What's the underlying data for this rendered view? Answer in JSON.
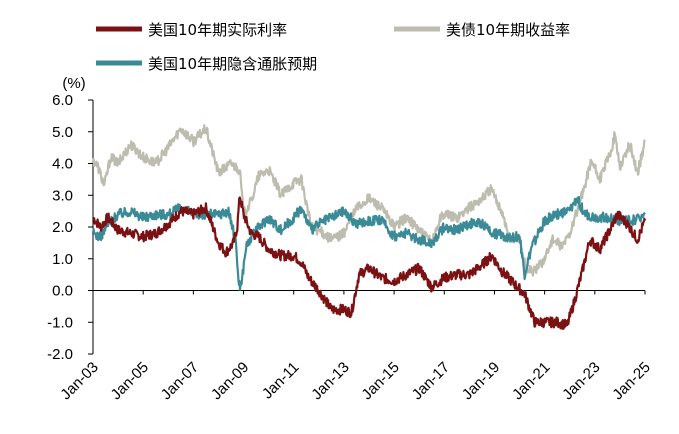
{
  "chart_data": {
    "type": "line",
    "title": "",
    "xlabel": "",
    "ylabel": "(%)",
    "ylim": [
      -2.0,
      6.0
    ],
    "yticks": [
      "6.0",
      "5.0",
      "4.0",
      "3.0",
      "2.0",
      "1.0",
      "0.0",
      "-1.0",
      "-2.0"
    ],
    "xticks": [
      "Jan-03",
      "Jan-05",
      "Jan-07",
      "Jan-09",
      "Jan-11",
      "Jan-13",
      "Jan-15",
      "Jan-17",
      "Jan-19",
      "Jan-21",
      "Jan-23",
      "Jan-25"
    ],
    "xrange": [
      2003.0,
      2025.0
    ],
    "legend_position": "top-left",
    "series": [
      {
        "name": "美国10年期实际利率",
        "color": "#7B1113",
        "points": [
          [
            2003.0,
            2.3
          ],
          [
            2003.3,
            2.0
          ],
          [
            2003.6,
            2.3
          ],
          [
            2004.0,
            1.9
          ],
          [
            2004.5,
            1.8
          ],
          [
            2005.0,
            1.7
          ],
          [
            2005.5,
            1.8
          ],
          [
            2006.0,
            2.1
          ],
          [
            2006.5,
            2.5
          ],
          [
            2007.0,
            2.4
          ],
          [
            2007.5,
            2.6
          ],
          [
            2008.0,
            1.5
          ],
          [
            2008.3,
            1.2
          ],
          [
            2008.6,
            1.5
          ],
          [
            2008.75,
            2.0
          ],
          [
            2008.85,
            3.0
          ],
          [
            2009.0,
            2.4
          ],
          [
            2009.3,
            1.8
          ],
          [
            2009.6,
            1.7
          ],
          [
            2010.0,
            1.3
          ],
          [
            2010.5,
            1.1
          ],
          [
            2011.0,
            1.1
          ],
          [
            2011.3,
            0.9
          ],
          [
            2011.6,
            0.4
          ],
          [
            2012.0,
            0.0
          ],
          [
            2012.5,
            -0.6
          ],
          [
            2013.0,
            -0.6
          ],
          [
            2013.3,
            -0.7
          ],
          [
            2013.6,
            0.5
          ],
          [
            2014.0,
            0.7
          ],
          [
            2014.5,
            0.4
          ],
          [
            2015.0,
            0.3
          ],
          [
            2015.5,
            0.5
          ],
          [
            2016.0,
            0.7
          ],
          [
            2016.5,
            0.1
          ],
          [
            2017.0,
            0.4
          ],
          [
            2017.5,
            0.5
          ],
          [
            2018.0,
            0.5
          ],
          [
            2018.5,
            0.8
          ],
          [
            2018.9,
            1.1
          ],
          [
            2019.3,
            0.6
          ],
          [
            2019.8,
            0.2
          ],
          [
            2020.2,
            -0.1
          ],
          [
            2020.6,
            -1.0
          ],
          [
            2021.0,
            -1.0
          ],
          [
            2021.5,
            -1.0
          ],
          [
            2021.9,
            -1.1
          ],
          [
            2022.2,
            -0.3
          ],
          [
            2022.5,
            0.6
          ],
          [
            2022.8,
            1.6
          ],
          [
            2023.2,
            1.3
          ],
          [
            2023.6,
            1.9
          ],
          [
            2023.9,
            2.4
          ],
          [
            2024.3,
            2.1
          ],
          [
            2024.7,
            1.6
          ],
          [
            2025.0,
            2.2
          ]
        ]
      },
      {
        "name": "美债10年期收益率",
        "color": "#BDBDAF",
        "points": [
          [
            2003.0,
            4.1
          ],
          [
            2003.2,
            3.9
          ],
          [
            2003.45,
            3.3
          ],
          [
            2003.7,
            4.2
          ],
          [
            2004.0,
            4.0
          ],
          [
            2004.5,
            4.6
          ],
          [
            2005.0,
            4.2
          ],
          [
            2005.5,
            4.0
          ],
          [
            2006.0,
            4.5
          ],
          [
            2006.5,
            5.1
          ],
          [
            2007.0,
            4.7
          ],
          [
            2007.5,
            5.1
          ],
          [
            2008.0,
            3.7
          ],
          [
            2008.5,
            4.0
          ],
          [
            2008.85,
            3.8
          ],
          [
            2009.0,
            2.4
          ],
          [
            2009.3,
            2.8
          ],
          [
            2009.6,
            3.6
          ],
          [
            2010.0,
            3.8
          ],
          [
            2010.5,
            3.0
          ],
          [
            2011.0,
            3.4
          ],
          [
            2011.3,
            3.5
          ],
          [
            2011.7,
            2.0
          ],
          [
            2012.0,
            1.9
          ],
          [
            2012.5,
            1.6
          ],
          [
            2013.0,
            1.8
          ],
          [
            2013.5,
            2.6
          ],
          [
            2014.0,
            2.9
          ],
          [
            2014.5,
            2.6
          ],
          [
            2015.0,
            2.0
          ],
          [
            2015.5,
            2.3
          ],
          [
            2016.0,
            1.9
          ],
          [
            2016.5,
            1.5
          ],
          [
            2016.9,
            2.4
          ],
          [
            2017.5,
            2.3
          ],
          [
            2018.0,
            2.6
          ],
          [
            2018.5,
            2.9
          ],
          [
            2018.85,
            3.2
          ],
          [
            2019.3,
            2.5
          ],
          [
            2019.6,
            1.6
          ],
          [
            2020.0,
            1.7
          ],
          [
            2020.25,
            0.7
          ],
          [
            2020.6,
            0.6
          ],
          [
            2021.0,
            1.0
          ],
          [
            2021.3,
            1.6
          ],
          [
            2021.7,
            1.4
          ],
          [
            2022.0,
            1.8
          ],
          [
            2022.5,
            3.0
          ],
          [
            2022.85,
            4.1
          ],
          [
            2023.2,
            3.5
          ],
          [
            2023.6,
            4.3
          ],
          [
            2023.8,
            4.9
          ],
          [
            2024.0,
            3.9
          ],
          [
            2024.4,
            4.6
          ],
          [
            2024.7,
            3.7
          ],
          [
            2025.0,
            4.7
          ]
        ]
      },
      {
        "name": "美国10年期隐含通胀预期",
        "color": "#3B8A97",
        "points": [
          [
            2003.0,
            1.8
          ],
          [
            2003.3,
            1.7
          ],
          [
            2003.6,
            2.1
          ],
          [
            2004.0,
            2.4
          ],
          [
            2004.5,
            2.5
          ],
          [
            2005.0,
            2.3
          ],
          [
            2005.5,
            2.4
          ],
          [
            2006.0,
            2.4
          ],
          [
            2006.5,
            2.6
          ],
          [
            2007.0,
            2.4
          ],
          [
            2007.5,
            2.4
          ],
          [
            2008.0,
            2.4
          ],
          [
            2008.4,
            2.5
          ],
          [
            2008.7,
            1.5
          ],
          [
            2008.8,
            0.3
          ],
          [
            2008.9,
            0.1
          ],
          [
            2009.1,
            1.4
          ],
          [
            2009.5,
            1.9
          ],
          [
            2010.0,
            2.3
          ],
          [
            2010.5,
            1.9
          ],
          [
            2011.0,
            2.3
          ],
          [
            2011.3,
            2.6
          ],
          [
            2011.7,
            1.9
          ],
          [
            2012.0,
            2.1
          ],
          [
            2012.5,
            2.3
          ],
          [
            2013.0,
            2.5
          ],
          [
            2013.5,
            2.1
          ],
          [
            2014.0,
            2.2
          ],
          [
            2014.5,
            2.2
          ],
          [
            2015.0,
            1.7
          ],
          [
            2015.5,
            1.8
          ],
          [
            2016.0,
            1.6
          ],
          [
            2016.5,
            1.5
          ],
          [
            2017.0,
            2.0
          ],
          [
            2017.5,
            1.9
          ],
          [
            2018.0,
            2.1
          ],
          [
            2018.5,
            2.1
          ],
          [
            2019.0,
            1.8
          ],
          [
            2019.5,
            1.7
          ],
          [
            2020.0,
            1.7
          ],
          [
            2020.2,
            0.5
          ],
          [
            2020.5,
            1.4
          ],
          [
            2021.0,
            2.2
          ],
          [
            2021.5,
            2.4
          ],
          [
            2022.0,
            2.5
          ],
          [
            2022.3,
            2.9
          ],
          [
            2022.6,
            2.4
          ],
          [
            2023.0,
            2.3
          ],
          [
            2023.5,
            2.3
          ],
          [
            2024.0,
            2.2
          ],
          [
            2024.5,
            2.2
          ],
          [
            2025.0,
            2.4
          ]
        ]
      }
    ]
  }
}
